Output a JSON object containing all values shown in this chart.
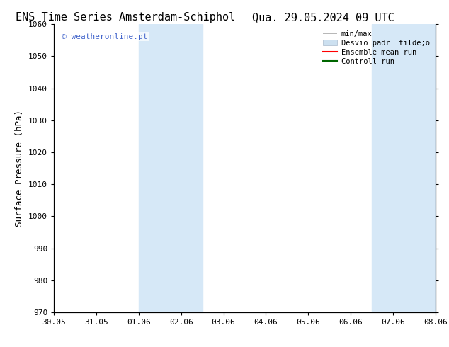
{
  "title_left": "ENS Time Series Amsterdam-Schiphol",
  "title_right": "Qua. 29.05.2024 09 UTC",
  "ylabel": "Surface Pressure (hPa)",
  "ylim": [
    970,
    1060
  ],
  "yticks": [
    970,
    980,
    990,
    1000,
    1010,
    1020,
    1030,
    1040,
    1050,
    1060
  ],
  "xtick_labels": [
    "30.05",
    "31.05",
    "01.06",
    "02.06",
    "03.06",
    "04.06",
    "05.06",
    "06.06",
    "07.06",
    "08.06"
  ],
  "watermark": "© weatheronline.pt",
  "watermark_color": "#4466cc",
  "background_color": "#ffffff",
  "plot_bg_color": "#ffffff",
  "shaded_regions": [
    {
      "xstart": 2.0,
      "xend": 3.5,
      "color": "#d6e8f7"
    },
    {
      "xstart": 7.5,
      "xend": 9.5,
      "color": "#d6e8f7"
    }
  ],
  "legend_entries": [
    {
      "label": "min/max"
    },
    {
      "label": "Desvio padr  tilde;o"
    },
    {
      "label": "Ensemble mean run"
    },
    {
      "label": "Controll run"
    }
  ],
  "legend_colors": [
    "#aaaaaa",
    "#cce0f0",
    "#ff0000",
    "#006600"
  ],
  "title_fontsize": 11,
  "tick_fontsize": 8,
  "ylabel_fontsize": 9
}
